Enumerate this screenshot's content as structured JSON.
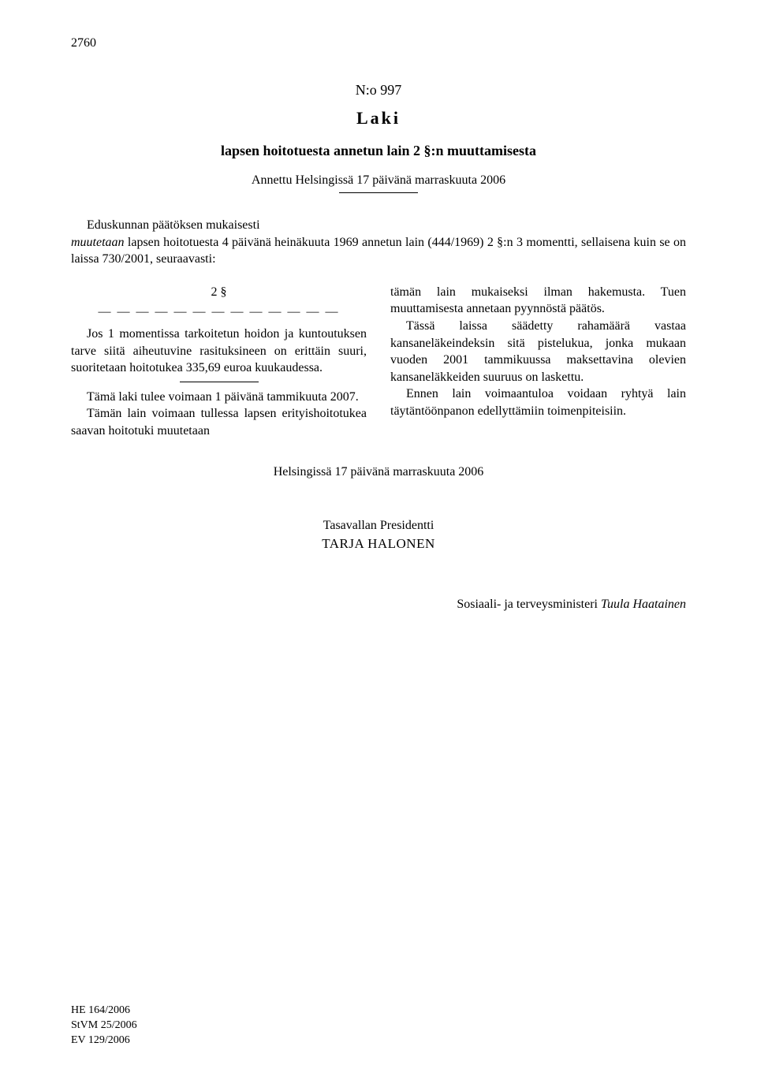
{
  "page_number": "2760",
  "header": {
    "doc_number": "N:o 997",
    "doc_type": "Laki",
    "title": "lapsen hoitotuesta annetun lain 2 §:n muuttamisesta",
    "given": "Annettu Helsingissä 17 päivänä marraskuuta 2006"
  },
  "preamble": {
    "lead": "Eduskunnan päätöksen mukaisesti",
    "text": "muutetaan lapsen hoitotuesta 4 päivänä heinäkuuta 1969 annetun lain (444/1969) 2 §:n 3 momentti, sellaisena kuin se on laissa 730/2001, seuraavasti:"
  },
  "body": {
    "section_label": "2 §",
    "dashes": "— — — — — — — — — — — — —",
    "left": {
      "p1": "Jos 1 momentissa tarkoitetun hoidon ja kuntoutuksen tarve siitä aiheutuvine rasituksineen on erittäin suuri, suoritetaan hoitotukea 335,69 euroa kuukaudessa.",
      "p2": "Tämä laki tulee voimaan 1 päivänä tammikuuta 2007.",
      "p3": "Tämän lain voimaan tullessa lapsen erityishoitotukea saavan hoitotuki muutetaan"
    },
    "right": {
      "p1": "tämän lain mukaiseksi ilman hakemusta. Tuen muuttamisesta annetaan pyynnöstä päätös.",
      "p2": "Tässä laissa säädetty rahamäärä vastaa kansaneläkeindeksin sitä pistelukua, jonka mukaan vuoden 2001 tammikuussa maksettavina olevien kansaneläkkeiden suuruus on laskettu.",
      "p3": "Ennen lain voimaantuloa voidaan ryhtyä lain täytäntöönpanon edellyttämiin toimenpiteisiin."
    }
  },
  "signed_place": "Helsingissä 17 päivänä marraskuuta 2006",
  "signature": {
    "title": "Tasavallan Presidentti",
    "name": "TARJA HALONEN"
  },
  "countersign": {
    "role": "Sosiaali- ja terveysministeri ",
    "name": "Tuula Haatainen"
  },
  "footer_refs": [
    "HE 164/2006",
    "StVM 25/2006",
    "EV 129/2006"
  ]
}
